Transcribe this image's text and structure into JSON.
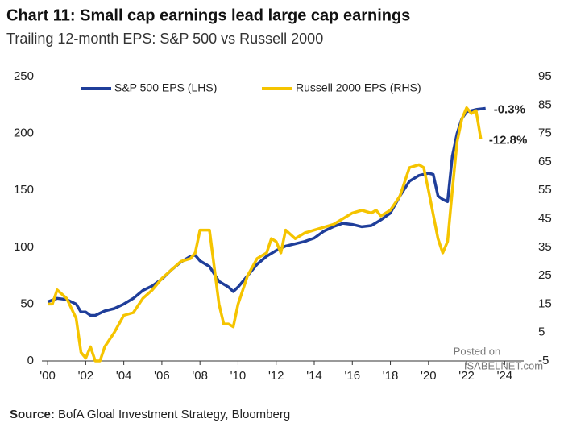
{
  "chart_data": {
    "type": "line",
    "title": "Chart 11: Small cap earnings lead large cap earnings",
    "subtitle": "Trailing 12-month EPS: S&P 500 vs Russell 2000",
    "source_label": "Source:",
    "source": "BofA Gloal Investment Strategy, Bloomberg",
    "watermark": [
      "Posted on",
      "ISABELNET.com"
    ],
    "annotations": [
      "-0.3%",
      "-12.8%"
    ],
    "annotation_color": "#ee1c1c",
    "legend": "upper center",
    "xlim": [
      1999.7,
      2025
    ],
    "xticks": [
      {
        "value": 2000,
        "label": "'00"
      },
      {
        "value": 2002,
        "label": "'02"
      },
      {
        "value": 2004,
        "label": "'04"
      },
      {
        "value": 2006,
        "label": "'06"
      },
      {
        "value": 2008,
        "label": "'08"
      },
      {
        "value": 2010,
        "label": "'10"
      },
      {
        "value": 2012,
        "label": "'12"
      },
      {
        "value": 2014,
        "label": "'14"
      },
      {
        "value": 2016,
        "label": "'16"
      },
      {
        "value": 2018,
        "label": "'18"
      },
      {
        "value": 2020,
        "label": "'20"
      },
      {
        "value": 2022,
        "label": "'22"
      },
      {
        "value": 2024,
        "label": "'24"
      }
    ],
    "ylim": [
      0,
      250
    ],
    "yticks": [
      0,
      50,
      100,
      150,
      200,
      250
    ],
    "y2lim": [
      -5,
      95
    ],
    "y2ticks": [
      -5,
      5,
      15,
      25,
      35,
      45,
      55,
      65,
      75,
      85,
      95
    ],
    "series": [
      {
        "name": "S&P 500 EPS (LHS)",
        "color": "#1f3e9a",
        "axis": "y",
        "x": [
          2000,
          2000.5,
          2001,
          2001.5,
          2001.75,
          2002,
          2002.25,
          2002.5,
          2003,
          2003.5,
          2004,
          2004.5,
          2005,
          2005.5,
          2006,
          2006.5,
          2007,
          2007.5,
          2007.75,
          2008,
          2008.5,
          2009,
          2009.5,
          2009.75,
          2010,
          2010.5,
          2011,
          2011.5,
          2012,
          2012.5,
          2013,
          2013.5,
          2014,
          2014.5,
          2015,
          2015.5,
          2016,
          2016.5,
          2017,
          2017.5,
          2018,
          2018.5,
          2019,
          2019.5,
          2020,
          2020.25,
          2020.5,
          2020.75,
          2021,
          2021.25,
          2021.5,
          2021.75,
          2022,
          2022.5,
          2023
        ],
        "values": [
          52,
          55,
          54,
          50,
          43,
          43,
          40,
          40,
          44,
          46,
          50,
          55,
          62,
          66,
          72,
          80,
          87,
          92,
          93,
          88,
          83,
          70,
          65,
          61,
          65,
          75,
          85,
          92,
          97,
          101,
          103,
          105,
          108,
          114,
          118,
          121,
          120,
          118,
          119,
          124,
          130,
          145,
          158,
          163,
          165,
          164,
          145,
          142,
          140,
          180,
          200,
          213,
          219,
          221,
          222
        ]
      },
      {
        "name": "Russell 2000 EPS (RHS)",
        "color": "#f5c400",
        "axis": "y2",
        "x": [
          2000,
          2000.25,
          2000.5,
          2001,
          2001.5,
          2001.75,
          2002,
          2002.25,
          2002.5,
          2002.75,
          2003,
          2003.5,
          2004,
          2004.5,
          2005,
          2005.5,
          2006,
          2006.5,
          2007,
          2007.5,
          2007.75,
          2008,
          2008.5,
          2009,
          2009.25,
          2009.5,
          2009.75,
          2010,
          2010.5,
          2011,
          2011.5,
          2011.75,
          2012,
          2012.25,
          2012.5,
          2013,
          2013.5,
          2014,
          2014.5,
          2015,
          2015.5,
          2016,
          2016.5,
          2017,
          2017.25,
          2017.5,
          2018,
          2018.5,
          2019,
          2019.5,
          2019.75,
          2020,
          2020.5,
          2020.75,
          2021,
          2021.25,
          2021.5,
          2021.75,
          2022,
          2022.25,
          2022.5,
          2022.75
        ],
        "values": [
          15,
          15,
          20,
          17,
          10,
          -2,
          -4,
          0,
          -5,
          -5,
          0,
          5,
          11,
          12,
          17,
          20,
          24,
          27,
          30,
          31,
          33,
          41,
          41,
          15,
          8,
          8,
          7,
          15,
          25,
          31,
          33,
          38,
          37,
          33,
          41,
          38,
          40,
          41,
          42,
          43,
          45,
          47,
          48,
          47,
          48,
          46,
          48,
          53,
          63,
          64,
          63,
          55,
          38,
          33,
          37,
          55,
          72,
          80,
          84,
          82,
          83,
          73
        ]
      }
    ]
  }
}
